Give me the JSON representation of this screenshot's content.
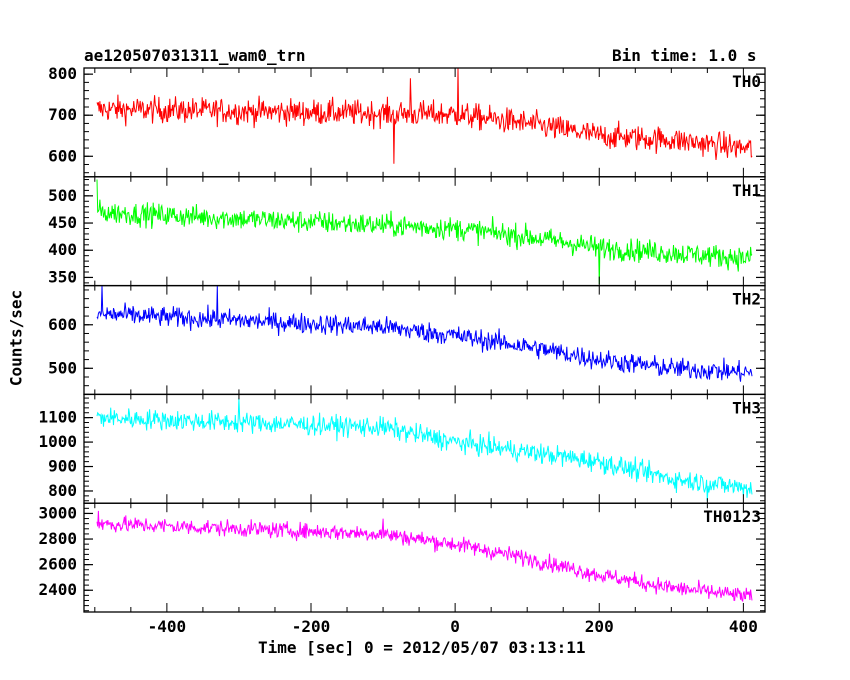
{
  "header": {
    "title": "ae120507031311_wam0_trn",
    "bin_time": "Bin time: 1.0 s"
  },
  "axes": {
    "ylabel": "Counts/sec",
    "xlabel": "Time [sec] 0 = 2012/05/07 03:13:11"
  },
  "chart_data": {
    "type": "line",
    "x_range": [
      -515,
      430
    ],
    "x_ticks": [
      -400,
      -200,
      0,
      200,
      400
    ],
    "x_step": 1.0,
    "x_start": -497,
    "x_end": 412,
    "panels": [
      {
        "name": "TH0",
        "color": "#ff0000",
        "ylim": [
          550,
          815
        ],
        "yticks": [
          600,
          700,
          800
        ],
        "trend": [
          [
            -497,
            715
          ],
          [
            0,
            702
          ],
          [
            100,
            680
          ],
          [
            200,
            650
          ],
          [
            300,
            640
          ],
          [
            412,
            618
          ]
        ],
        "noise": 60,
        "spikes": [
          [
            4,
            820
          ],
          [
            -62,
            790
          ],
          [
            -85,
            582
          ]
        ]
      },
      {
        "name": "TH1",
        "color": "#00ff00",
        "ylim": [
          335,
          535
        ],
        "yticks": [
          350,
          400,
          450,
          500
        ],
        "trend": [
          [
            -497,
            470
          ],
          [
            0,
            440
          ],
          [
            100,
            425
          ],
          [
            200,
            405
          ],
          [
            300,
            395
          ],
          [
            412,
            385
          ]
        ],
        "noise": 40,
        "spikes": [
          [
            -497,
            530
          ],
          [
            200,
            338
          ]
        ]
      },
      {
        "name": "TH2",
        "color": "#0000ff",
        "ylim": [
          440,
          690
        ],
        "yticks": [
          500,
          600
        ],
        "trend": [
          [
            -497,
            625
          ],
          [
            -100,
            595
          ],
          [
            0,
            575
          ],
          [
            100,
            550
          ],
          [
            200,
            520
          ],
          [
            300,
            500
          ],
          [
            412,
            490
          ]
        ],
        "noise": 45,
        "spikes": [
          [
            -490,
            690
          ],
          [
            -330,
            690
          ]
        ]
      },
      {
        "name": "TH3",
        "color": "#00ffff",
        "ylim": [
          750,
          1195
        ],
        "yticks": [
          800,
          900,
          1000,
          1100
        ],
        "trend": [
          [
            -497,
            1100
          ],
          [
            -100,
            1060
          ],
          [
            0,
            1000
          ],
          [
            100,
            960
          ],
          [
            200,
            920
          ],
          [
            300,
            850
          ],
          [
            412,
            810
          ]
        ],
        "noise": 80,
        "spikes": [
          [
            -300,
            1180
          ],
          [
            350,
            760
          ]
        ]
      },
      {
        "name": "TH0123",
        "color": "#ff00ff",
        "ylim": [
          2230,
          3080
        ],
        "yticks": [
          2400,
          2600,
          2800,
          3000
        ],
        "trend": [
          [
            -497,
            2920
          ],
          [
            -100,
            2840
          ],
          [
            0,
            2760
          ],
          [
            100,
            2650
          ],
          [
            200,
            2520
          ],
          [
            300,
            2420
          ],
          [
            412,
            2350
          ]
        ],
        "noise": 120,
        "spikes": [
          [
            -100,
            2960
          ],
          [
            -495,
            3020
          ]
        ]
      }
    ]
  }
}
